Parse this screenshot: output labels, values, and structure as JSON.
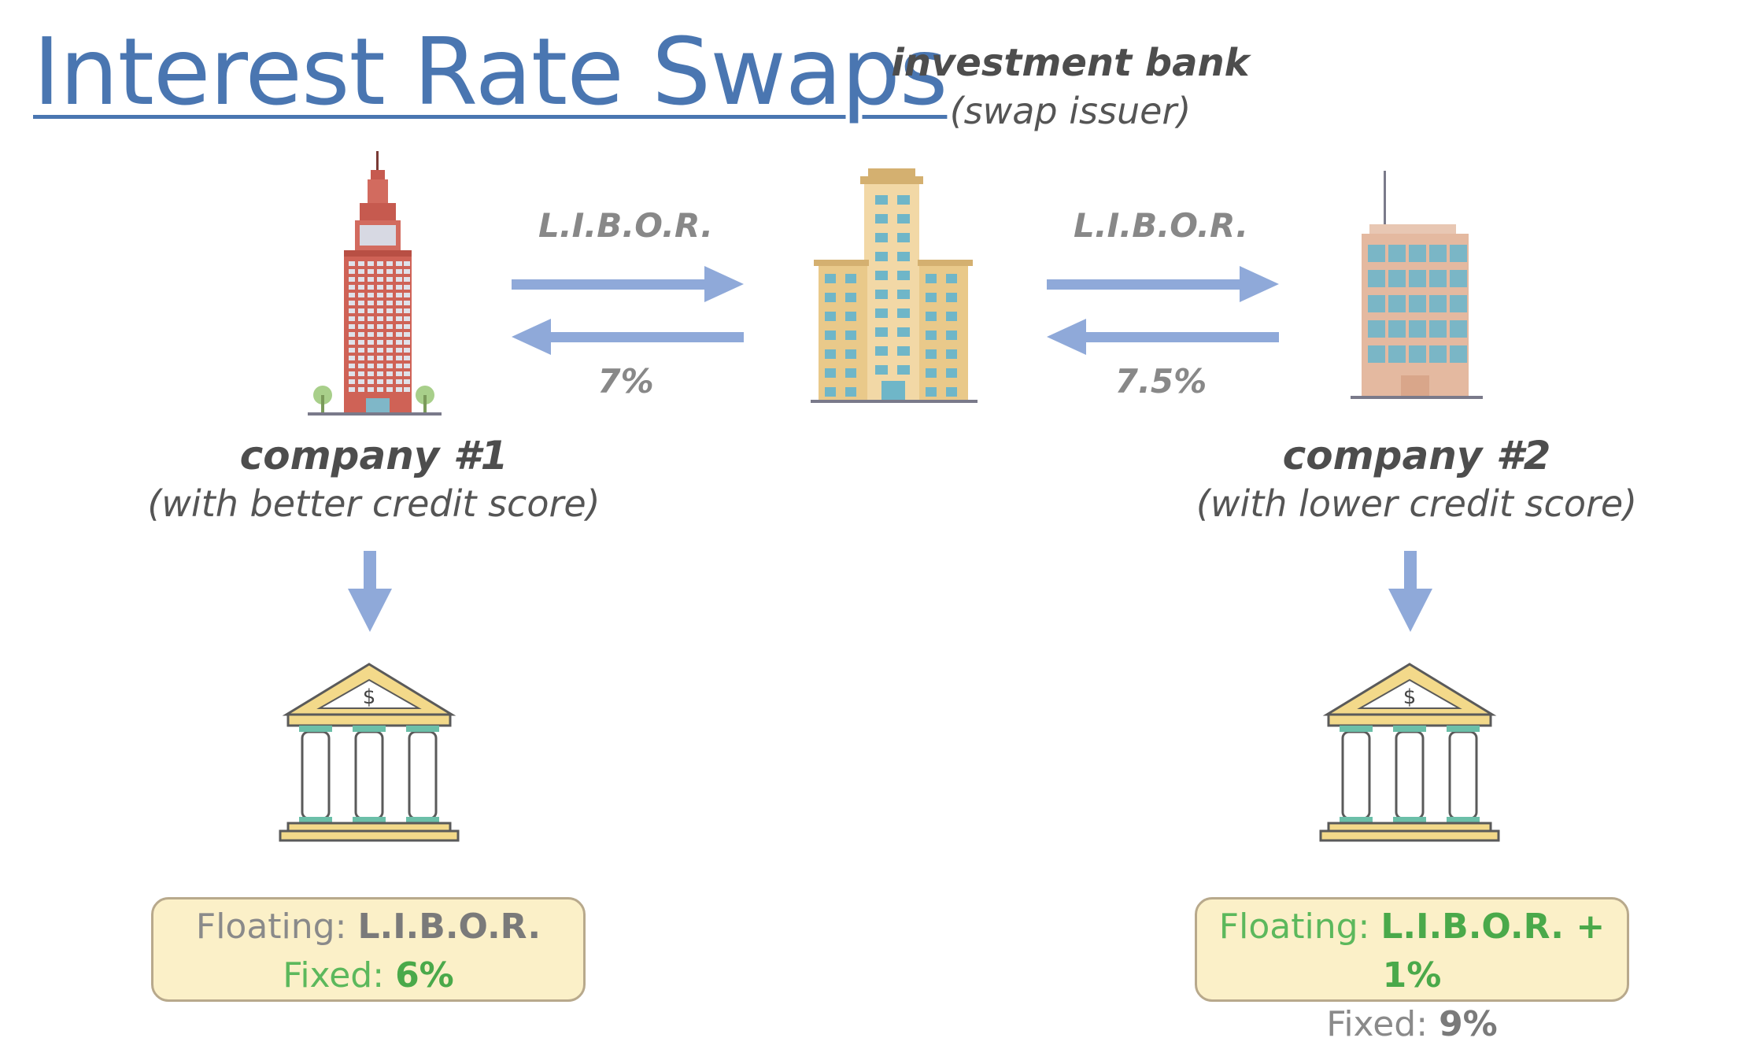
{
  "title": "Interest Rate Swaps",
  "investment_bank": {
    "name": "investment bank",
    "subtitle": "(swap issuer)"
  },
  "company1": {
    "name": "company #1",
    "subtitle": "(with better credit score)"
  },
  "company2": {
    "name": "company #2",
    "subtitle": "(with lower credit score)"
  },
  "flows": {
    "c1_to_bank_label": "L.I.B.O.R.",
    "bank_to_c1_label": "7%",
    "bank_to_c2_label": "L.I.B.O.R.",
    "c2_to_bank_label": "7.5%"
  },
  "company1_rates": {
    "floating_label": "Floating:",
    "floating_value": "L.I.B.O.R.",
    "fixed_label": "Fixed:",
    "fixed_value": "6%"
  },
  "company2_rates": {
    "floating_label": "Floating:",
    "floating_value": "L.I.B.O.R. + 1%",
    "fixed_label": "Fixed:",
    "fixed_value": "9%"
  },
  "colors": {
    "title": "#4a76b1",
    "arrow": "#8fa9d9",
    "highlight_green": "#5cb85c",
    "box_fill": "#fbf0c8",
    "box_border": "#b8a98c"
  },
  "icons": {
    "company1": "red-skyscraper-icon",
    "bank": "tan-office-building-icon",
    "company2": "blue-glass-office-icon",
    "lender": "bank-dollar-temple-icon"
  }
}
